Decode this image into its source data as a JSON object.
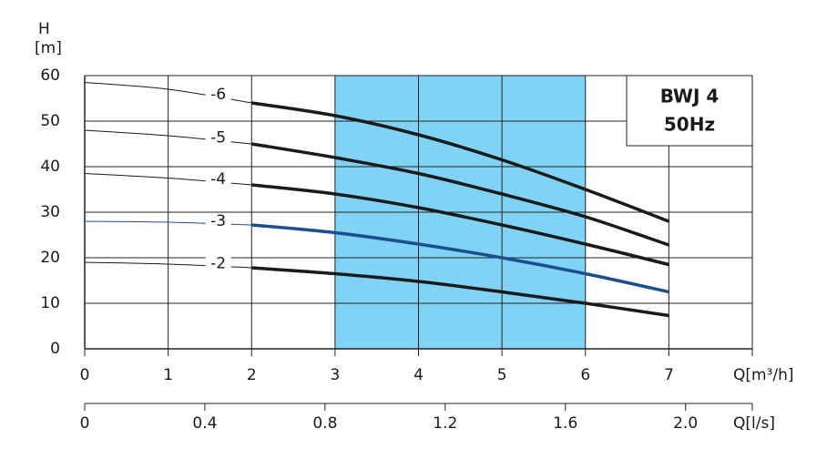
{
  "chart_data": {
    "type": "line",
    "y_label_top": "H",
    "y_label_unit": "[m]",
    "x_label": "Q[m³/h]",
    "x2_label": "Q[l/s]",
    "box_lines": [
      "BWJ 4",
      "50Hz"
    ],
    "x": [
      0,
      1,
      2,
      3,
      4,
      5,
      6,
      7
    ],
    "series": [
      {
        "name": "-6",
        "color": "#1a1a1a",
        "values": [
          58.5,
          57,
          54,
          51.2,
          47,
          41.5,
          35,
          28
        ]
      },
      {
        "name": "-5",
        "color": "#1a1a1a",
        "values": [
          48,
          46.8,
          45,
          42,
          38.5,
          34,
          29,
          22.8
        ]
      },
      {
        "name": "-4",
        "color": "#1a1a1a",
        "values": [
          38.5,
          37.5,
          36,
          34,
          31,
          27.2,
          23,
          18.5
        ]
      },
      {
        "name": "-3",
        "color": "#1b4f8f",
        "values": [
          28,
          27.8,
          27.2,
          25.5,
          23,
          20,
          16.5,
          12.5
        ]
      },
      {
        "name": "-2",
        "color": "#1a1a1a",
        "values": [
          19,
          18.6,
          17.8,
          16.5,
          14.8,
          12.5,
          10,
          7.3
        ]
      }
    ],
    "highlight_range": [
      3,
      6
    ],
    "highlight_color": "#80d3f5",
    "xlim": [
      0,
      8
    ],
    "xticks": [
      0,
      1,
      2,
      3,
      4,
      5,
      6,
      7
    ],
    "ylim": [
      0,
      60
    ],
    "yticks": [
      0,
      10,
      20,
      30,
      40,
      50,
      60
    ],
    "x2lim": [
      0,
      2.2222
    ],
    "x2ticks": [
      0,
      0.4,
      0.8,
      1.2,
      1.6,
      {
        "value": 2,
        "label": "2.0"
      }
    ],
    "grid": true
  }
}
